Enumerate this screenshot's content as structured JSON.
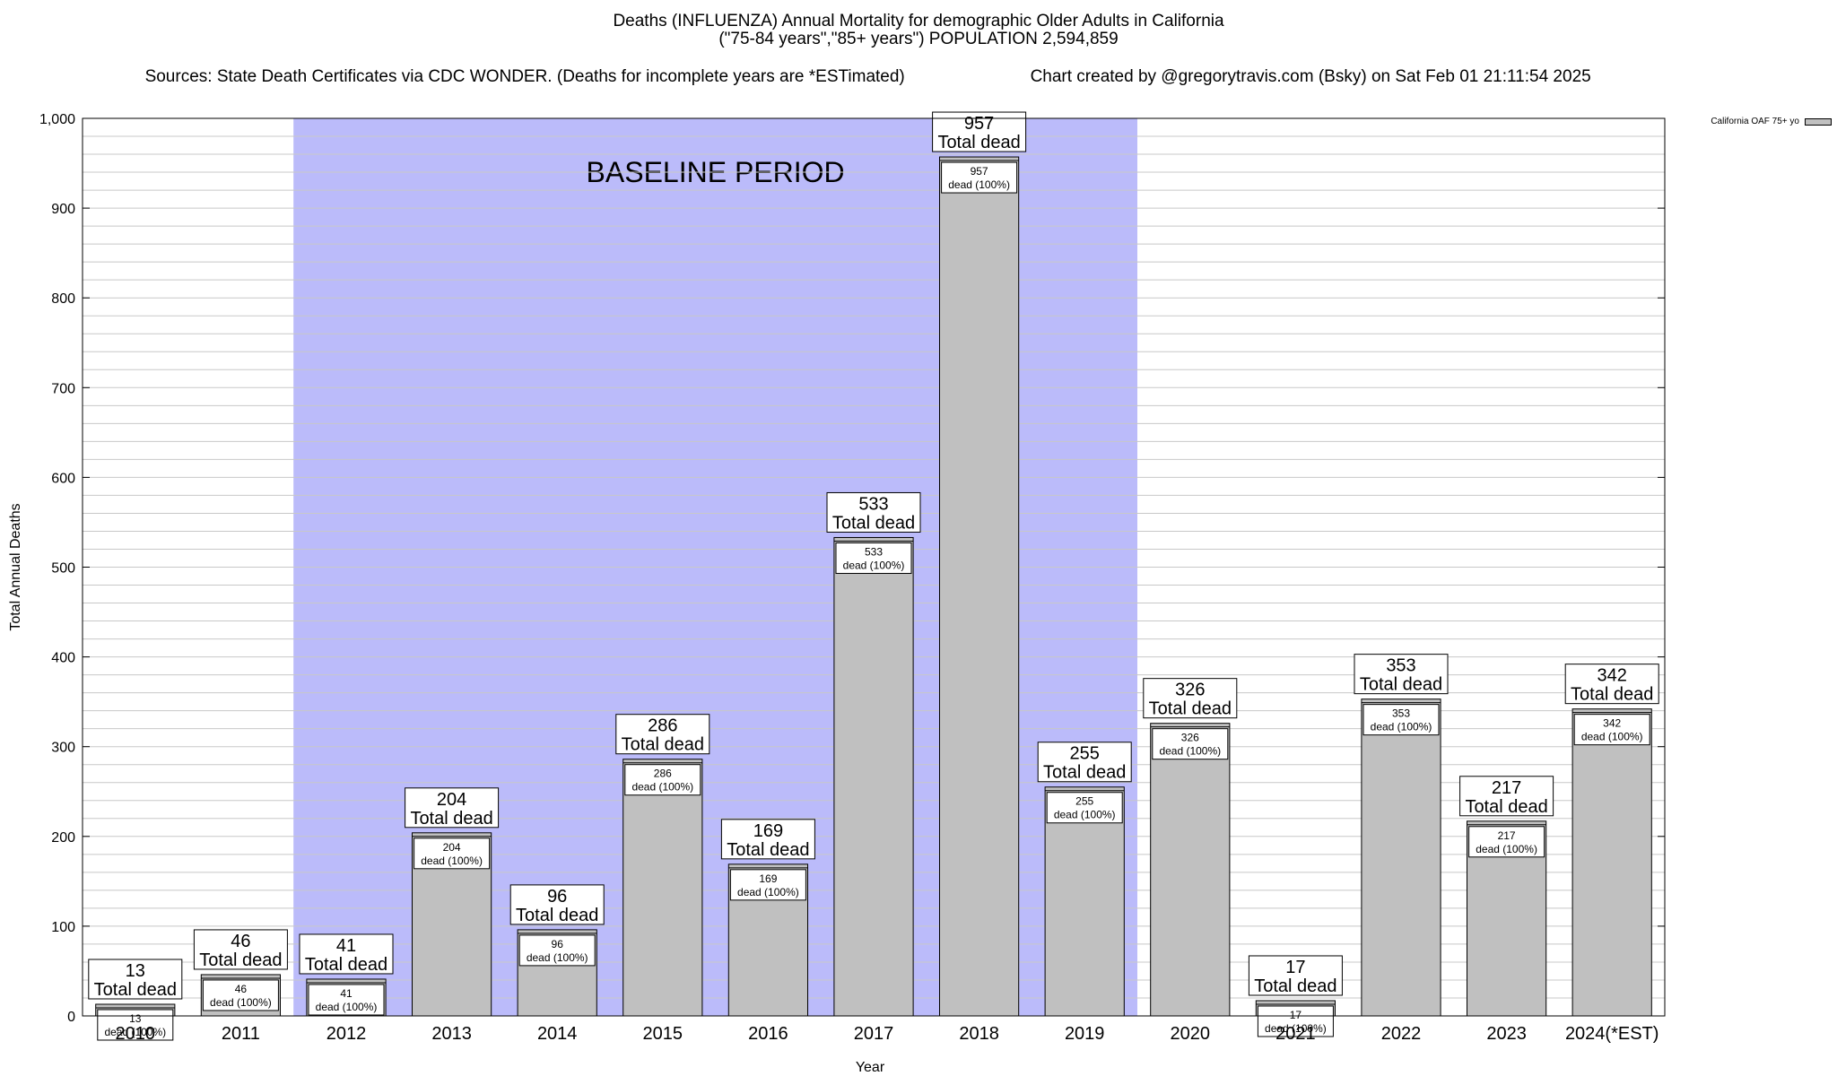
{
  "header": {
    "title_line1": "Deaths (INFLUENZA) Annual Mortality for demographic Older Adults in California",
    "title_line2": "(\"75-84 years\",\"85+ years\") POPULATION 2,594,859",
    "sources": "Sources: State Death Certificates via CDC WONDER. (Deaths for incomplete years are *ESTimated)",
    "credit": "Chart created by @gregorytravis.com (Bsky) on Sat Feb 01 21:11:54 2025"
  },
  "chart_data": {
    "type": "bar",
    "xlabel": "Year",
    "ylabel": "Total Annual Deaths",
    "ylim": [
      0,
      1000
    ],
    "yticks": [
      0,
      100,
      200,
      300,
      400,
      500,
      600,
      700,
      800,
      900,
      1000
    ],
    "ytick_labels": [
      "0",
      "100",
      "200",
      "300",
      "400",
      "500",
      "600",
      "700",
      "800",
      "900",
      "1,000"
    ],
    "categories": [
      "2010",
      "2011",
      "2012",
      "2013",
      "2014",
      "2015",
      "2016",
      "2017",
      "2018",
      "2019",
      "2020",
      "2021",
      "2022",
      "2023",
      "2024(*EST)"
    ],
    "series": [
      {
        "name": "California OAF 75+ yo",
        "values": [
          13,
          46,
          41,
          204,
          96,
          286,
          169,
          533,
          957,
          255,
          326,
          17,
          353,
          217,
          342
        ]
      }
    ],
    "total_label": "Total dead",
    "inner_label": "dead (100%)",
    "baseline": {
      "label": "BASELINE PERIOD",
      "from": "2012",
      "to": "2019"
    },
    "grid": true,
    "legend_position": "top-right",
    "colors": {
      "bar": "#c0c0c0",
      "baseline": "#bbbbfa",
      "grid": "#c8c8c8"
    }
  }
}
